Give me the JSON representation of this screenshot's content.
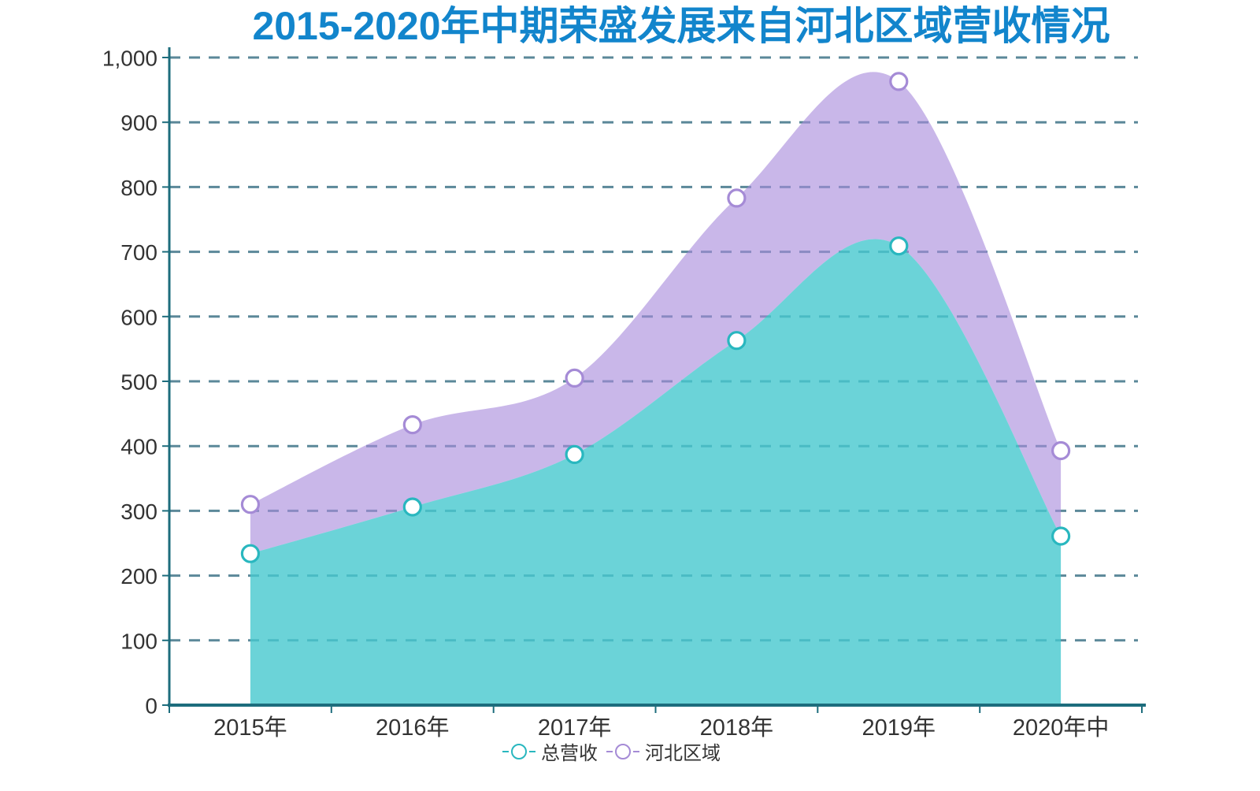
{
  "page": {
    "background": "#ffffff"
  },
  "chart_data": {
    "type": "area",
    "variant": "stacked-smooth-spline",
    "title": "2015-2020年中期荣盛发展来自河北区域营收情况",
    "title_color": "#1285cc",
    "categories": [
      "2015年",
      "2016年",
      "2017年",
      "2018年",
      "2019年",
      "2020年中"
    ],
    "series": [
      {
        "name": "总营收",
        "marker_color": "#29b7bf",
        "fill_color": "rgba(70,200,206,0.80)",
        "values": [
          234,
          306,
          387,
          563,
          709,
          261
        ]
      },
      {
        "name": "河北区域",
        "marker_color": "#a58bd6",
        "fill_color": "rgba(168,138,219,0.62)",
        "values": [
          76,
          127,
          118,
          220,
          254,
          132
        ],
        "stacked_top_values": [
          310,
          433,
          505,
          783,
          963,
          393
        ]
      }
    ],
    "xlabel": "",
    "ylabel": "",
    "ylim": [
      0,
      1000
    ],
    "ytick_step": 100,
    "ytick_labels": [
      "0",
      "100",
      "200",
      "300",
      "400",
      "500",
      "600",
      "700",
      "800",
      "900",
      "1,000"
    ],
    "grid": "horizontal-dashed",
    "grid_color": "#4a7c8e",
    "axis_color": "#1d6d7d",
    "tick_label_color": "#333333",
    "legend_position": "bottom",
    "marker_style": "hollow-circle-white-fill"
  }
}
